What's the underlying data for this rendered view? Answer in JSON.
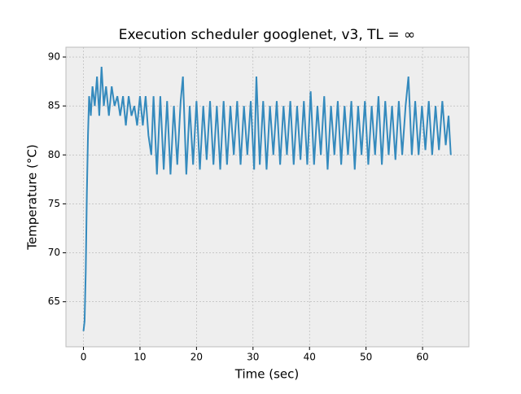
{
  "chart_data": {
    "type": "line",
    "title": "Execution scheduler googlenet, v3, TL = ∞",
    "xlabel": "Time (sec)",
    "ylabel": "Temperature (°C)",
    "xlim": [
      -3.1,
      68.2
    ],
    "ylim": [
      60.4,
      91.0
    ],
    "xticks": [
      0,
      10,
      20,
      30,
      40,
      50,
      60
    ],
    "yticks": [
      65,
      70,
      75,
      80,
      85,
      90
    ],
    "grid": true,
    "series": [
      {
        "color": "#348abd",
        "x": [
          0,
          0.2,
          0.4,
          0.6,
          0.8,
          1.0,
          1.3,
          1.6,
          2.0,
          2.4,
          2.8,
          3.2,
          3.6,
          4.0,
          4.5,
          5,
          5.5,
          6,
          6.5,
          7,
          7.5,
          8,
          8.5,
          9,
          9.5,
          10,
          10.5,
          11,
          11.5,
          12,
          12.4,
          13.0,
          13.6,
          14.2,
          14.8,
          15.4,
          16.0,
          16.6,
          17.2,
          17.6,
          18.2,
          18.8,
          19.4,
          20.0,
          20.6,
          21.2,
          21.8,
          22.4,
          23.0,
          23.6,
          24.2,
          24.8,
          25.4,
          26.0,
          26.6,
          27.2,
          27.8,
          28.4,
          29.0,
          29.6,
          30.2,
          30.6,
          31.2,
          31.8,
          32.4,
          33.0,
          33.6,
          34.2,
          34.8,
          35.4,
          36.0,
          36.6,
          37.2,
          37.8,
          38.4,
          39.0,
          39.6,
          40.2,
          40.8,
          41.4,
          42.0,
          42.6,
          43.2,
          43.8,
          44.4,
          45.0,
          45.6,
          46.2,
          46.8,
          47.4,
          48.0,
          48.6,
          49.2,
          49.8,
          50.4,
          51.0,
          51.6,
          52.2,
          52.8,
          53.4,
          54.0,
          54.6,
          55.2,
          55.8,
          56.4,
          57.0,
          57.5,
          58.1,
          58.7,
          59.3,
          59.9,
          60.5,
          61.1,
          61.7,
          62.3,
          62.9,
          63.5,
          64.1,
          64.6,
          65.0
        ],
        "values": [
          62,
          63,
          68,
          76,
          82,
          86,
          84,
          87,
          85,
          88,
          84,
          89,
          85,
          87,
          84,
          87,
          85,
          86,
          84,
          86,
          83,
          86,
          84,
          85,
          83,
          86,
          83,
          86,
          82,
          80,
          86,
          78,
          86,
          78.5,
          85.5,
          78,
          85,
          79,
          85.5,
          88,
          78,
          85,
          79,
          85.5,
          78.5,
          85,
          79.5,
          85.5,
          79,
          85,
          78.5,
          85.5,
          79,
          85,
          80,
          85.5,
          79,
          85,
          80,
          85.5,
          78.5,
          88,
          79,
          85.5,
          78.5,
          85,
          80,
          85.5,
          79,
          85,
          80,
          85.5,
          79,
          85,
          79.5,
          85.5,
          79,
          86.5,
          79,
          85,
          80,
          86,
          78.5,
          85,
          80,
          85.5,
          79,
          85,
          80,
          85.5,
          78.5,
          85,
          80,
          85.5,
          79,
          85,
          80,
          86,
          79,
          85.5,
          80,
          85,
          79.5,
          85.5,
          80,
          85,
          88,
          80,
          85.5,
          80,
          85,
          80.5,
          85.5,
          80,
          85,
          80.5,
          85.5,
          81,
          84,
          80
        ]
      }
    ]
  }
}
